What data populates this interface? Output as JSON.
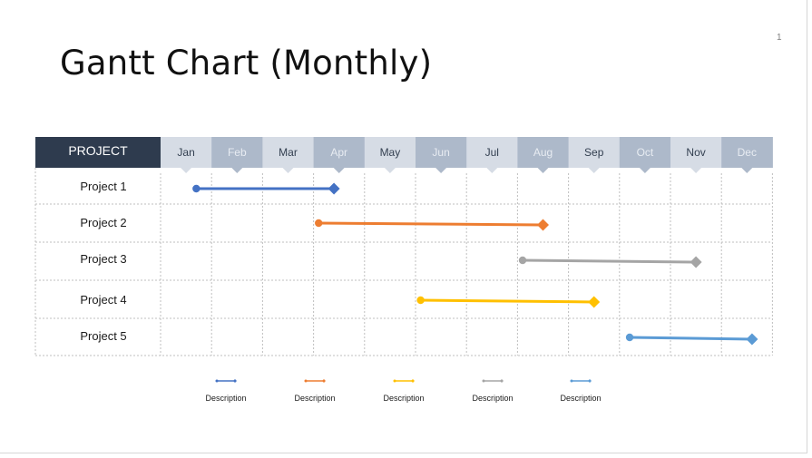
{
  "slide": {
    "title": "Gantt Chart (Monthly)",
    "number": "1"
  },
  "chart_data": {
    "type": "gantt",
    "header_label": "PROJECT",
    "months": [
      "Jan",
      "Feb",
      "Mar",
      "Apr",
      "May",
      "Jun",
      "Jul",
      "Aug",
      "Sep",
      "Oct",
      "Nov",
      "Dec"
    ],
    "projects": [
      {
        "name": "Project 1",
        "start": 1.0,
        "end": 4.4,
        "color": "#4472C4"
      },
      {
        "name": "Project 2",
        "start": 3.4,
        "end": 8.5,
        "color": "#ED7D31"
      },
      {
        "name": "Project 3",
        "start": 7.4,
        "end": 11.5,
        "color": "#A5A5A5"
      },
      {
        "name": "Project 4",
        "start": 5.4,
        "end": 9.5,
        "color": "#FFC000"
      },
      {
        "name": "Project 5",
        "start": 9.5,
        "end": 12.6,
        "color": "#5B9BD5"
      }
    ],
    "legend": [
      {
        "label": "Description",
        "color": "#4472C4"
      },
      {
        "label": "Description",
        "color": "#ED7D31"
      },
      {
        "label": "Description",
        "color": "#FFC000"
      },
      {
        "label": "Description",
        "color": "#A5A5A5"
      },
      {
        "label": "Description",
        "color": "#5B9BD5"
      }
    ],
    "colors": {
      "header_dark": "#2E3B4E",
      "month_light": "#D6DCE5",
      "month_dark": "#ADB9CA",
      "month_text_light": "#333f50",
      "month_text_dark": "#e8ecf2",
      "grid": "#bfbfbf"
    }
  }
}
